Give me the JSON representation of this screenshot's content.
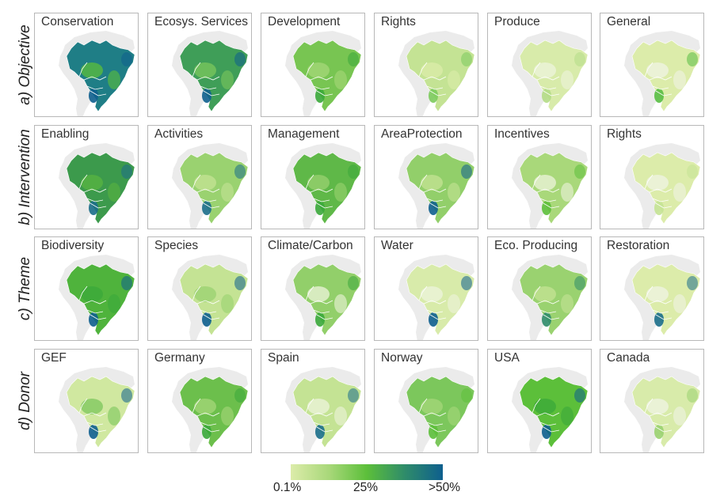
{
  "rows": [
    {
      "label": "a) Objective",
      "panels": [
        {
          "title": "Conservation",
          "fill": "#1f7e86",
          "accent": "#0e5f8e",
          "patch": "#5cbf3a"
        },
        {
          "title": "Ecosys. Services",
          "fill": "#3f9e58",
          "accent": "#0e5f8e",
          "patch": "#7cc75c"
        },
        {
          "title": "Development",
          "fill": "#78c552",
          "accent": "#3aa83a",
          "patch": "#a6d77a"
        },
        {
          "title": "Rights",
          "fill": "#c4e394",
          "accent": "#7ccb5c",
          "patch": "#dcecaa"
        },
        {
          "title": "Produce",
          "fill": "#d8ebaa",
          "accent": "#b4dc86",
          "patch": "#eef4dc"
        },
        {
          "title": "General",
          "fill": "#dcecaa",
          "accent": "#58be42",
          "patch": "#f0f4e4"
        }
      ]
    },
    {
      "label": "b) Intervention",
      "panels": [
        {
          "title": "Enabling",
          "fill": "#3c9a4c",
          "accent": "#1b6e8a",
          "patch": "#58b440"
        },
        {
          "title": "Activities",
          "fill": "#9ad270",
          "accent": "#1b6e8a",
          "patch": "#c4e394"
        },
        {
          "title": "Management",
          "fill": "#5fb848",
          "accent": "#3aa83a",
          "patch": "#9ad270"
        },
        {
          "title": "AreaProtection",
          "fill": "#92cf6a",
          "accent": "#0e5f8e",
          "patch": "#c4e394"
        },
        {
          "title": "Incentives",
          "fill": "#a9d87a",
          "accent": "#5cbf3a",
          "patch": "#eef4dc"
        },
        {
          "title": "Rights",
          "fill": "#dcecaa",
          "accent": "#c4e394",
          "patch": "#f0f4e4"
        }
      ]
    },
    {
      "label": "c) Theme",
      "panels": [
        {
          "title": "Biodiversity",
          "fill": "#4fb33c",
          "accent": "#0e5f8e",
          "patch": "#3aa83a"
        },
        {
          "title": "Species",
          "fill": "#c4e394",
          "accent": "#0e5f8e",
          "patch": "#9ad270"
        },
        {
          "title": "Climate/Carbon",
          "fill": "#92cf6a",
          "accent": "#3aa83a",
          "patch": "#eef4dc"
        },
        {
          "title": "Water",
          "fill": "#d8ebaa",
          "accent": "#0e5f8e",
          "patch": "#eef4dc"
        },
        {
          "title": "Eco. Producing",
          "fill": "#9ad270",
          "accent": "#2f8c6a",
          "patch": "#c4e394"
        },
        {
          "title": "Restoration",
          "fill": "#dcecaa",
          "accent": "#1b6e8a",
          "patch": "#f0f4e4"
        }
      ]
    },
    {
      "label": "d) Donor",
      "panels": [
        {
          "title": "GEF",
          "fill": "#d0e8a0",
          "accent": "#0e5f8e",
          "patch": "#7cc75c"
        },
        {
          "title": "Germany",
          "fill": "#6cbf4c",
          "accent": "#3aa83a",
          "patch": "#a6d77a"
        },
        {
          "title": "Spain",
          "fill": "#c4e394",
          "accent": "#1b6e8a",
          "patch": "#eef4dc"
        },
        {
          "title": "Norway",
          "fill": "#7cc75c",
          "accent": "#5cbf3a",
          "patch": "#a6d77a"
        },
        {
          "title": "USA",
          "fill": "#5cbf3a",
          "accent": "#0e5f8e",
          "patch": "#3aa83a"
        },
        {
          "title": "Canada",
          "fill": "#d8ebaa",
          "accent": "#9ad270",
          "patch": "#f0f4e4"
        }
      ]
    }
  ],
  "legend": {
    "ticks": [
      {
        "label": "0.1%",
        "value": 0.1
      },
      {
        "label": "25%",
        "value": 25
      },
      {
        "label": ">50%",
        "value": 50
      }
    ],
    "colors": [
      "#dcecaa",
      "#a9d87a",
      "#5cbf3a",
      "#2f8c6a",
      "#0e5f8e"
    ]
  }
}
